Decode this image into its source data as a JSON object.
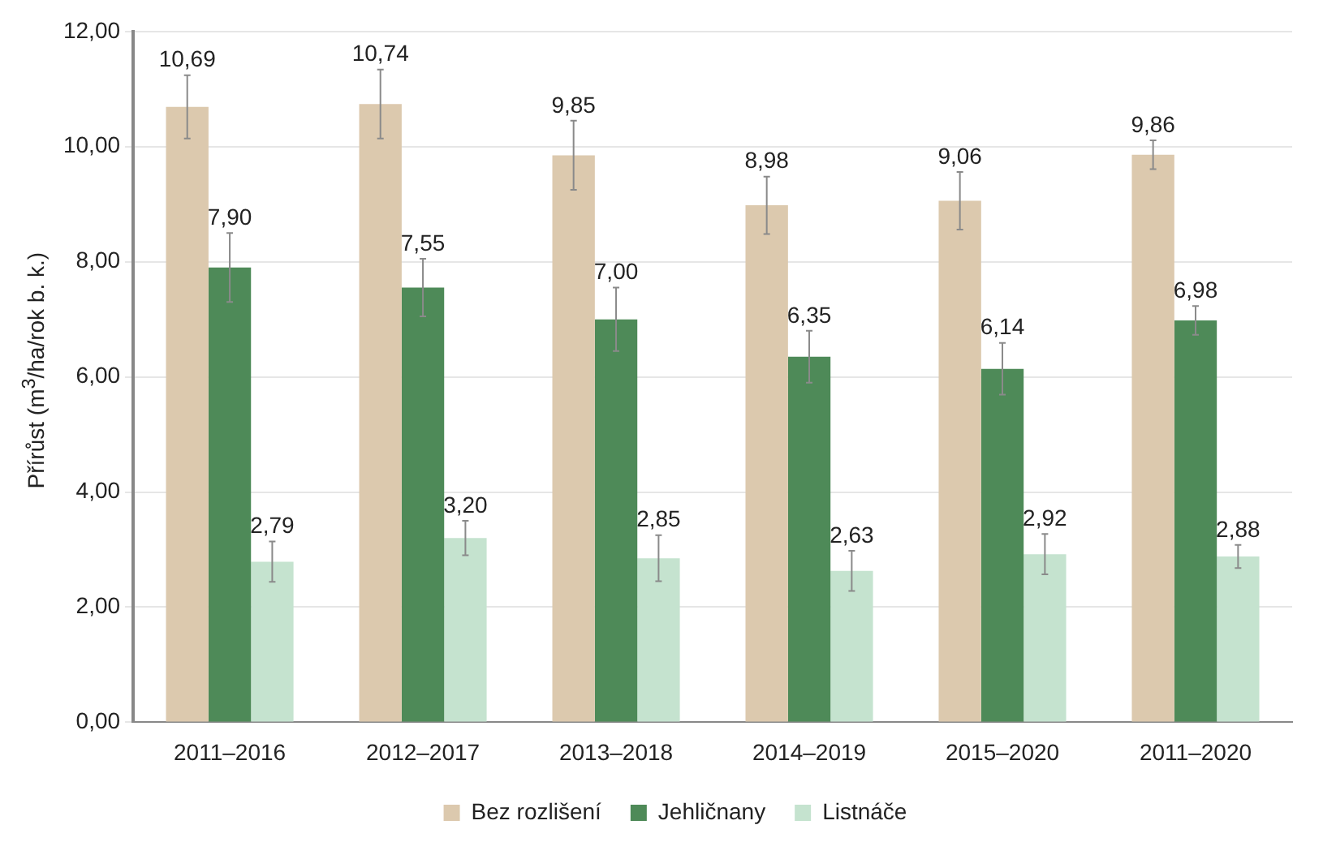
{
  "chart_data": {
    "type": "bar",
    "ylabel": "Přírůst (m$^{3}$/ha/rok b. k.)",
    "categories": [
      "2011–2016",
      "2012–2017",
      "2013–2018",
      "2014–2019",
      "2015–2020",
      "2011–2020"
    ],
    "series": [
      {
        "name": "Bez rozlišení",
        "color": "#dcc9ae",
        "values": [
          10.69,
          10.74,
          9.85,
          8.98,
          9.06,
          9.86
        ],
        "errors": [
          0.55,
          0.6,
          0.6,
          0.5,
          0.5,
          0.25
        ],
        "value_labels": [
          "10,69",
          "10,74",
          "9,85",
          "8,98",
          "9,06",
          "9,86"
        ]
      },
      {
        "name": "Jehličnany",
        "color": "#4e8a58",
        "values": [
          7.9,
          7.55,
          7.0,
          6.35,
          6.14,
          6.98
        ],
        "errors": [
          0.6,
          0.5,
          0.55,
          0.45,
          0.45,
          0.25
        ],
        "value_labels": [
          "7,90",
          "7,55",
          "7,00",
          "6,35",
          "6,14",
          "6,98"
        ]
      },
      {
        "name": "Listnáče",
        "color": "#c5e3cf",
        "values": [
          2.79,
          3.2,
          2.85,
          2.63,
          2.92,
          2.88
        ],
        "errors": [
          0.35,
          0.3,
          0.4,
          0.35,
          0.35,
          0.2
        ],
        "value_labels": [
          "2,79",
          "3,20",
          "2,85",
          "2,63",
          "2,92",
          "2,88"
        ]
      }
    ],
    "ylim": [
      0,
      12
    ],
    "yticks": [
      {
        "value": 0,
        "label": "0,00"
      },
      {
        "value": 2,
        "label": "2,00"
      },
      {
        "value": 4,
        "label": "4,00"
      },
      {
        "value": 6,
        "label": "6,00"
      },
      {
        "value": 8,
        "label": "8,00"
      },
      {
        "value": 10,
        "label": "10,00"
      },
      {
        "value": 12,
        "label": "12,00"
      }
    ],
    "grid": "y",
    "legend": "bottom"
  }
}
